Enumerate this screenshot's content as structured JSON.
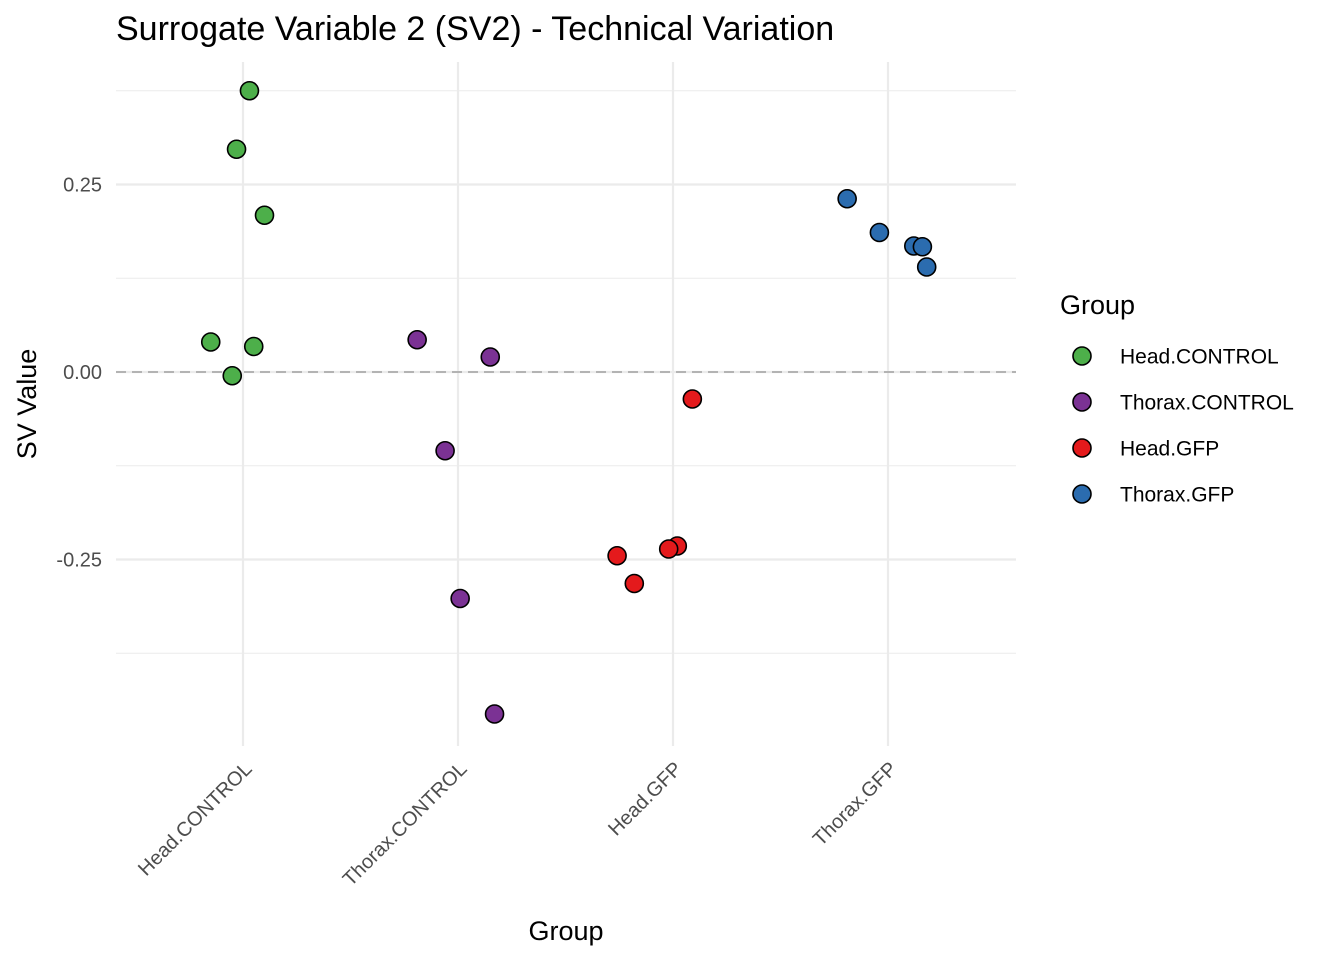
{
  "chart_data": {
    "type": "scatter",
    "title": "Surrogate Variable 2 (SV2) - Technical Variation",
    "xlabel": "Group",
    "ylabel": "SV Value",
    "categories": [
      "Head.CONTROL",
      "Thorax.CONTROL",
      "Head.GFP",
      "Thorax.GFP"
    ],
    "ylim": [
      -0.49,
      0.415
    ],
    "yticks": [
      0.25,
      0.0,
      -0.25
    ],
    "ytick_labels": [
      "0.25",
      "0.00",
      "-0.25"
    ],
    "yminor": [
      0.375,
      0.125,
      -0.125,
      -0.375
    ],
    "reference_line": 0.0,
    "legend_title": "Group",
    "legend_position": "right",
    "series": [
      {
        "name": "Head.CONTROL",
        "color": "#4DAF4A",
        "points": [
          {
            "x": 1.03,
            "y": 0.375
          },
          {
            "x": 0.97,
            "y": 0.297
          },
          {
            "x": 1.1,
            "y": 0.209
          },
          {
            "x": 0.85,
            "y": 0.04
          },
          {
            "x": 1.05,
            "y": 0.034
          },
          {
            "x": 0.95,
            "y": -0.005
          }
        ]
      },
      {
        "name": "Thorax.CONTROL",
        "color": "#7B3294",
        "points": [
          {
            "x": 1.81,
            "y": 0.043
          },
          {
            "x": 2.15,
            "y": 0.02
          },
          {
            "x": 1.94,
            "y": -0.105
          },
          {
            "x": 2.01,
            "y": -0.302
          },
          {
            "x": 2.17,
            "y": -0.456
          }
        ]
      },
      {
        "name": "Head.GFP",
        "color": "#E41A1C",
        "points": [
          {
            "x": 3.09,
            "y": -0.036
          },
          {
            "x": 3.02,
            "y": -0.232
          },
          {
            "x": 2.98,
            "y": -0.236
          },
          {
            "x": 2.74,
            "y": -0.245
          },
          {
            "x": 2.82,
            "y": -0.282
          }
        ]
      },
      {
        "name": "Thorax.GFP",
        "color": "#2B6CAF",
        "points": [
          {
            "x": 3.81,
            "y": 0.231
          },
          {
            "x": 3.96,
            "y": 0.186
          },
          {
            "x": 4.12,
            "y": 0.168
          },
          {
            "x": 4.16,
            "y": 0.167
          },
          {
            "x": 4.18,
            "y": 0.14
          }
        ]
      }
    ]
  }
}
